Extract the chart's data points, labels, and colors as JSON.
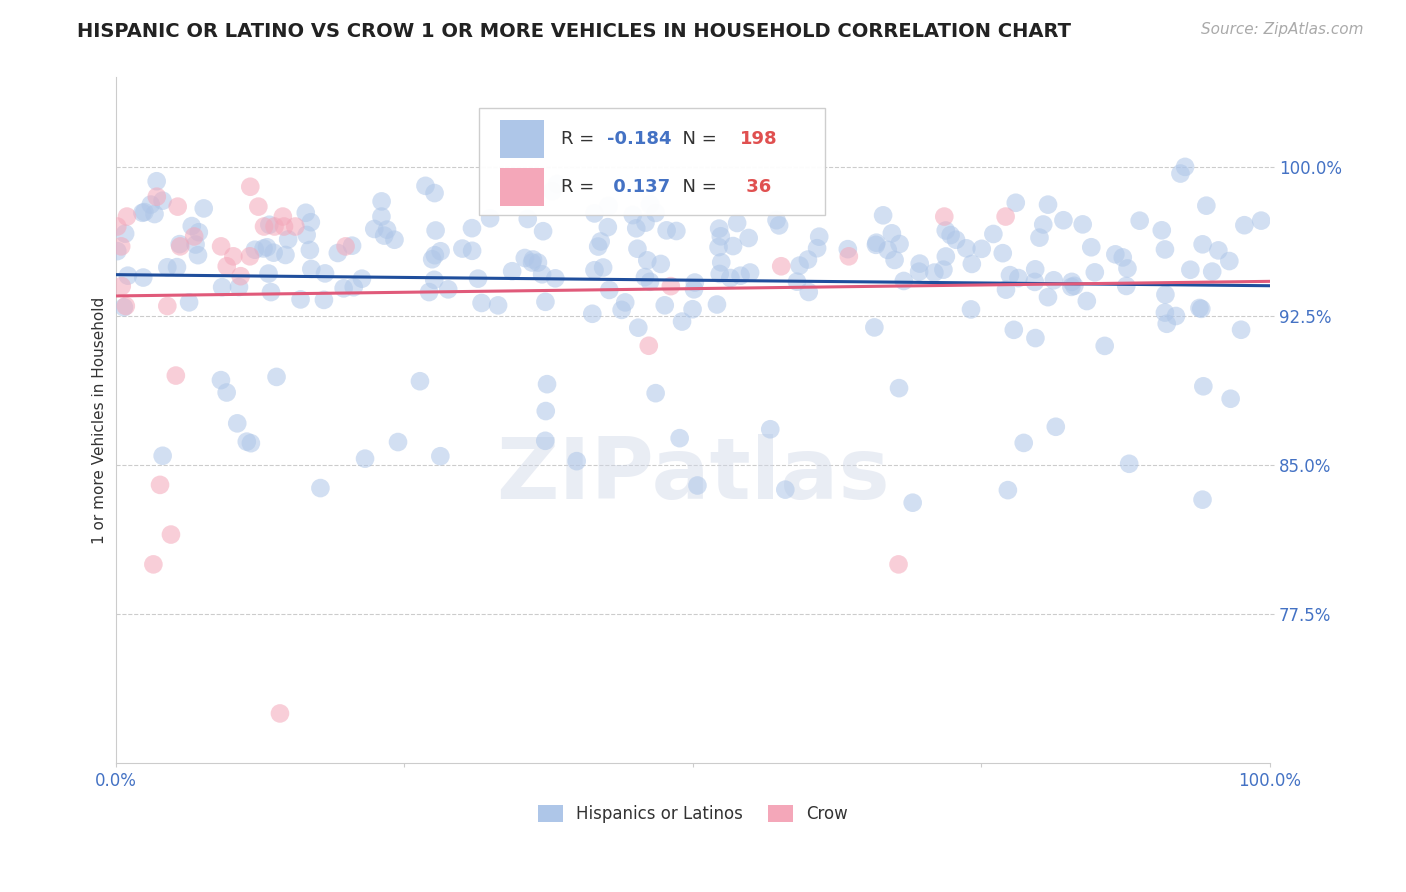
{
  "title": "HISPANIC OR LATINO VS CROW 1 OR MORE VEHICLES IN HOUSEHOLD CORRELATION CHART",
  "source": "Source: ZipAtlas.com",
  "ylabel": "1 or more Vehicles in Household",
  "ytick_labels": [
    "100.0%",
    "92.5%",
    "85.0%",
    "77.5%"
  ],
  "ytick_values": [
    1.0,
    0.925,
    0.85,
    0.775
  ],
  "xlim": [
    0.0,
    1.0
  ],
  "ylim": [
    0.7,
    1.045
  ],
  "blue_R": -0.184,
  "blue_N": 198,
  "pink_R": 0.137,
  "pink_N": 36,
  "blue_color": "#aec6e8",
  "pink_color": "#f4a7b9",
  "blue_line_color": "#1f4e9c",
  "pink_line_color": "#e05a7a",
  "legend_blue_label": "Hispanics or Latinos",
  "legend_pink_label": "Crow",
  "title_fontsize": 14,
  "label_fontsize": 11,
  "tick_fontsize": 12,
  "source_fontsize": 11,
  "background_color": "#ffffff",
  "watermark_text": "ZIPatlas",
  "grid_color": "#cccccc"
}
